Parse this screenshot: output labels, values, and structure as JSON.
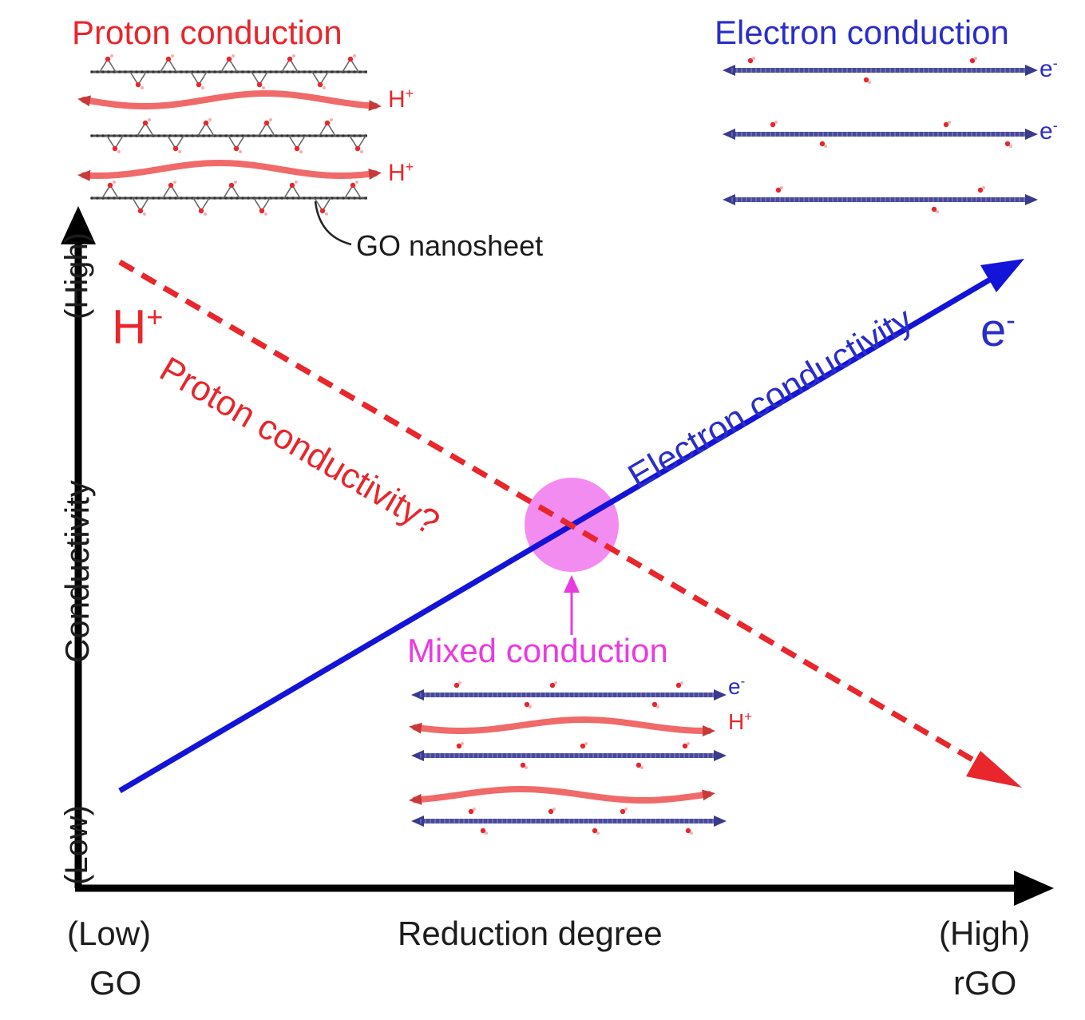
{
  "diagram": {
    "proton_conduction_title": "Proton conduction",
    "electron_conduction_title": "Electron conduction",
    "go_nanosheet_label": "GO nanosheet",
    "proton_symbol": "H",
    "proton_charge": "+",
    "electron_symbol": "e",
    "electron_charge": "-",
    "proton_conductivity_label": "Proton conductivity?",
    "electron_conductivity_label": "Electron conductivity",
    "mixed_conduction_label": "Mixed conduction",
    "y_axis": {
      "title": "Conductivity",
      "low": "(Low)",
      "high": "(High)"
    },
    "x_axis": {
      "title": "Reduction degree",
      "low": "(Low)",
      "high": "(High)",
      "low_material": "GO",
      "high_material": "rGO"
    },
    "colors": {
      "proton": "#e8262b",
      "proton_wave": "#f06a6a",
      "electron": "#1414d8",
      "sheet_blue": "#4a4a9c",
      "mixed": "#f27ff0",
      "axis": "#000000"
    }
  }
}
